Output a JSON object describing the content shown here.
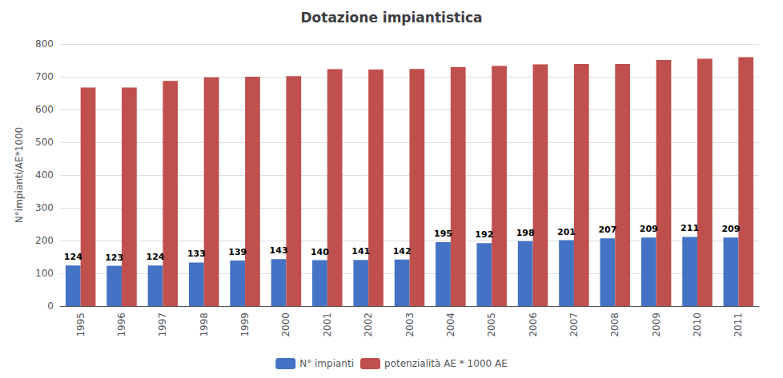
{
  "chart_data": {
    "type": "bar",
    "title": "Dotazione impiantistica",
    "categories": [
      "1995",
      "1996",
      "1997",
      "1998",
      "1999",
      "2000",
      "2001",
      "2002",
      "2003",
      "2004",
      "2005",
      "2006",
      "2007",
      "2008",
      "2009",
      "2010",
      "2011"
    ],
    "series": [
      {
        "name": "N° impianti",
        "color": "#4472C4",
        "data_labels": true,
        "values": [
          124,
          123,
          124,
          133,
          139,
          143,
          140,
          141,
          142,
          195,
          192,
          198,
          201,
          207,
          209,
          211,
          209
        ]
      },
      {
        "name": "potenzialità AE * 1000 AE",
        "color": "#C0504D",
        "values": [
          667,
          667,
          687,
          698,
          700,
          702,
          723,
          722,
          724,
          729,
          733,
          738,
          739,
          739,
          751,
          755,
          760
        ]
      }
    ],
    "ylabel": "N°impianti/AE*1000",
    "ylim": [
      0,
      800
    ],
    "yticks": [
      0,
      100,
      200,
      300,
      400,
      500,
      600,
      700,
      800
    ],
    "grid": true,
    "legend": "bottom"
  }
}
